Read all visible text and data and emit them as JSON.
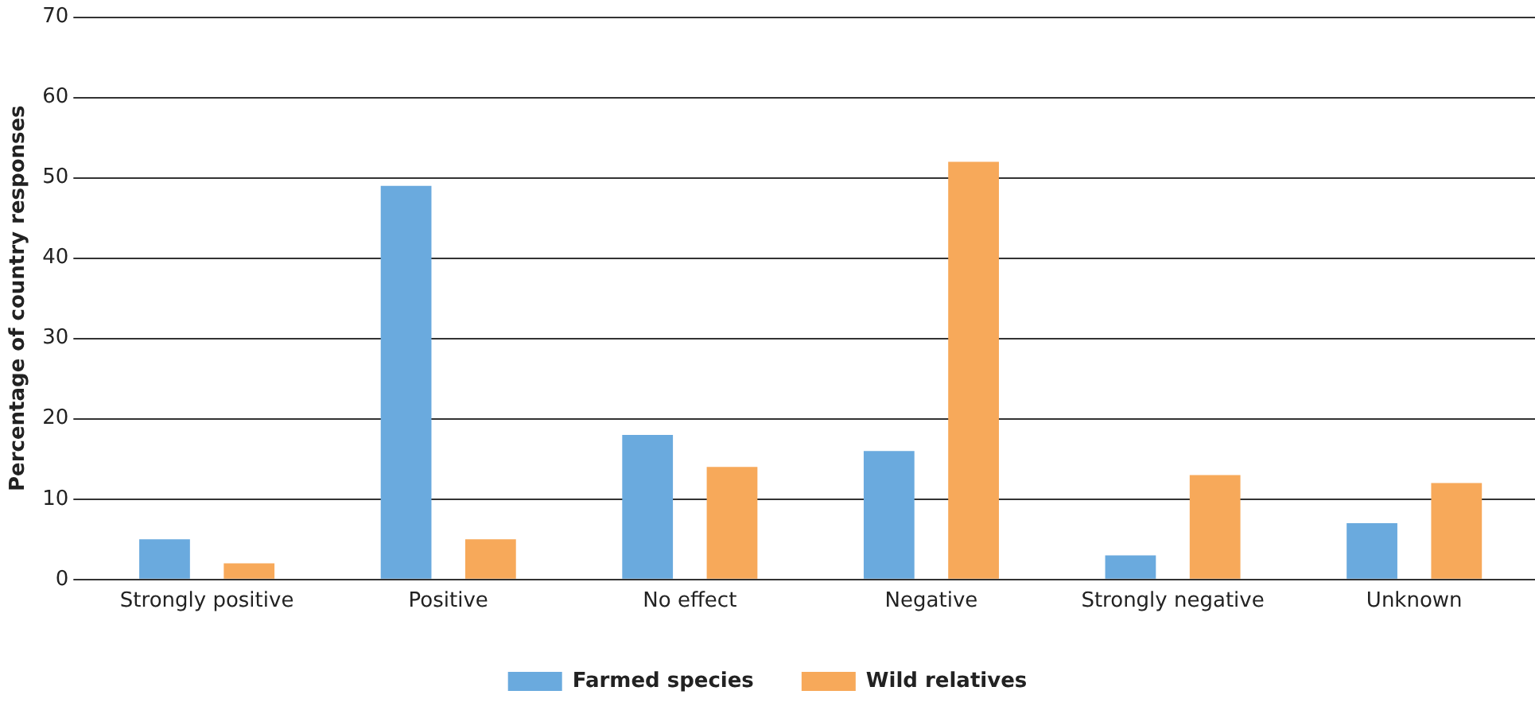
{
  "chart_data": {
    "type": "bar",
    "ylabel": "Percentage of country responses",
    "categories": [
      "Strongly positive",
      "Positive",
      "No effect",
      "Negative",
      "Strongly negative",
      "Unknown"
    ],
    "series": [
      {
        "name": "Farmed species",
        "color": "#6aaade",
        "values": [
          5,
          49,
          18,
          16,
          3,
          7
        ]
      },
      {
        "name": "Wild relatives",
        "color": "#f7a95a",
        "values": [
          2,
          5,
          14,
          52,
          13,
          12
        ]
      }
    ],
    "ylim": [
      0,
      70
    ],
    "yticks": [
      0,
      10,
      20,
      30,
      40,
      50,
      60,
      70
    ],
    "grid": "y",
    "legend": "bottom"
  }
}
